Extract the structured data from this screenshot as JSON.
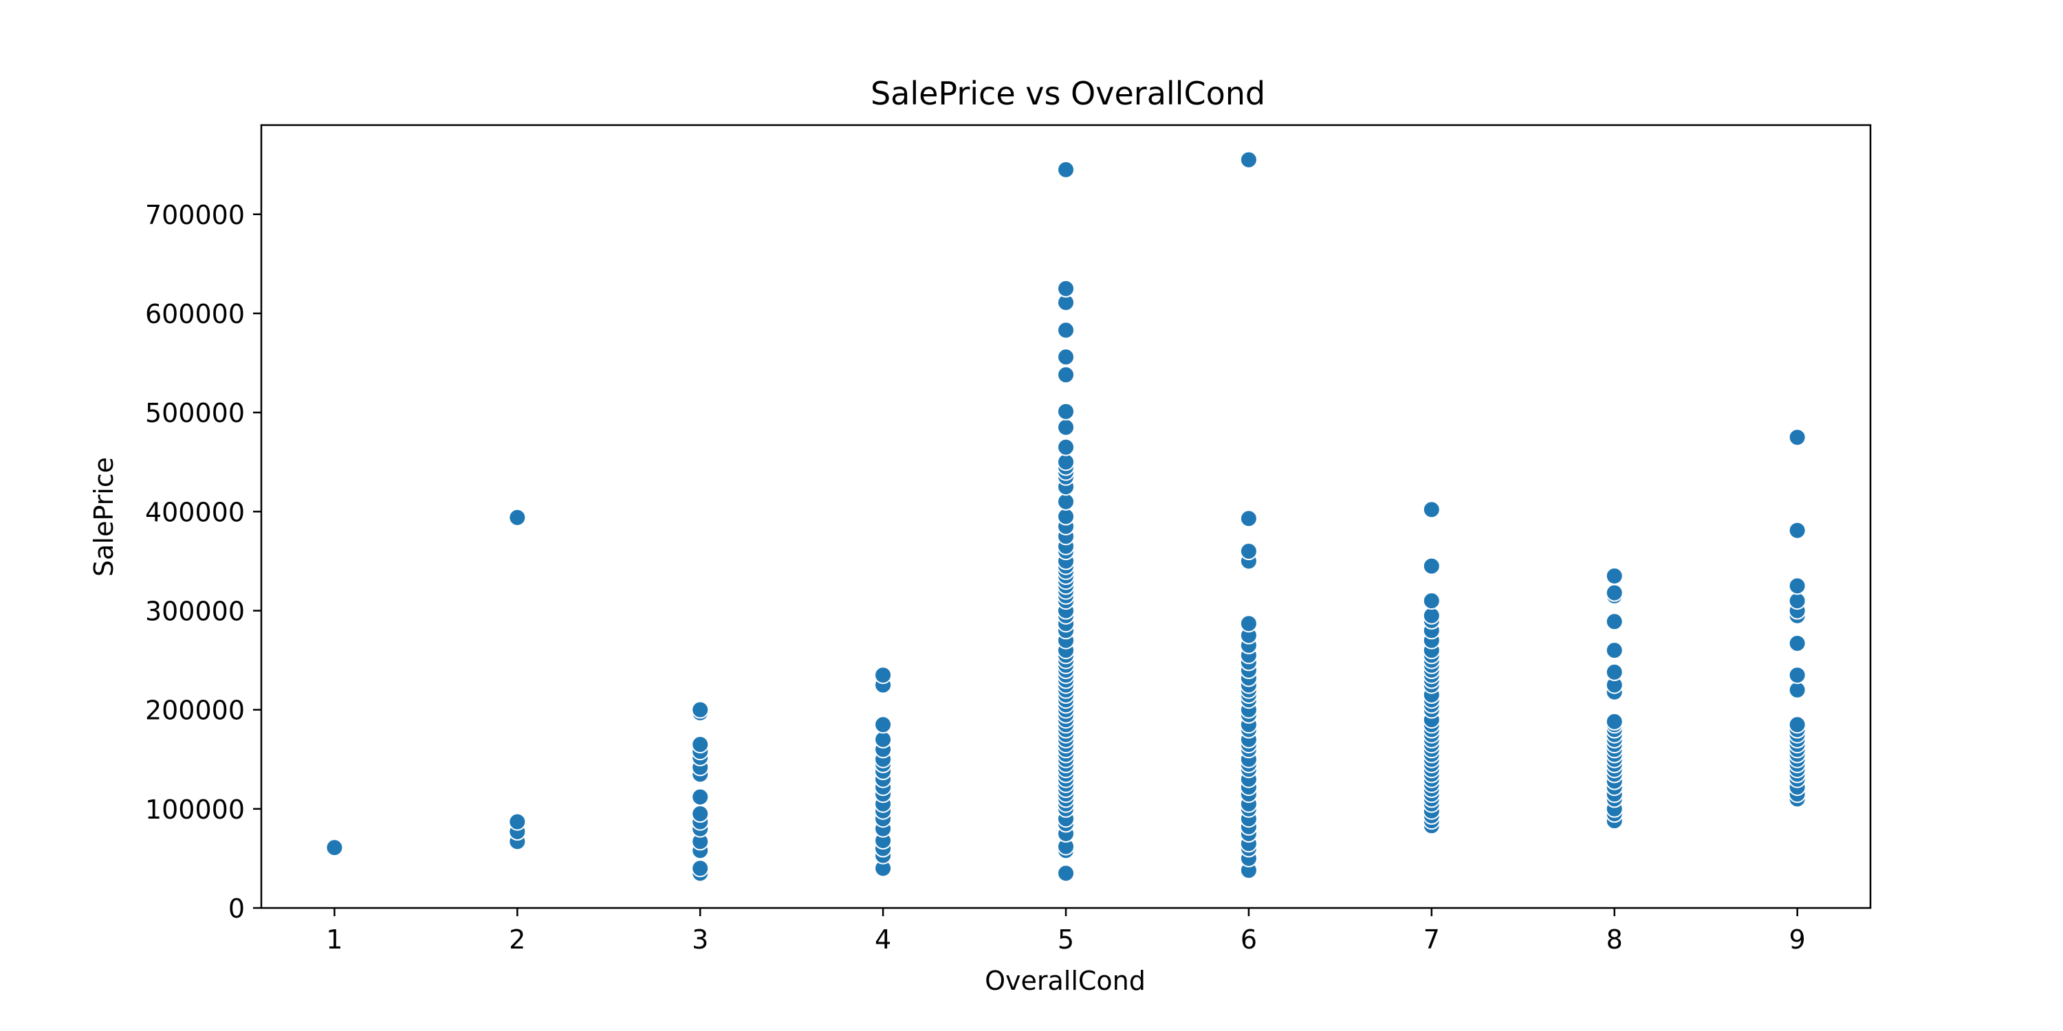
{
  "chart_data": {
    "type": "scatter",
    "title": "SalePrice vs OverallCond",
    "xlabel": "OverallCond",
    "ylabel": "SalePrice",
    "xlim": [
      0.6,
      9.4
    ],
    "ylim": [
      0,
      790000
    ],
    "x_ticks": [
      1,
      2,
      3,
      4,
      5,
      6,
      7,
      8,
      9
    ],
    "x_tick_labels": [
      "1",
      "2",
      "3",
      "4",
      "5",
      "6",
      "7",
      "8",
      "9"
    ],
    "y_ticks": [
      0,
      100000,
      200000,
      300000,
      400000,
      500000,
      600000,
      700000
    ],
    "y_tick_labels": [
      "0",
      "100000",
      "200000",
      "300000",
      "400000",
      "500000",
      "600000",
      "700000"
    ],
    "grid": false,
    "marker_color": "#1f77b4",
    "marker_edge_color": "#ffffff",
    "series": [
      {
        "points": [
          {
            "x": 1,
            "y": 61000
          },
          {
            "x": 2,
            "y": 67000
          },
          {
            "x": 2,
            "y": 77000
          },
          {
            "x": 2,
            "y": 87000
          },
          {
            "x": 2,
            "y": 394000
          },
          {
            "x": 3,
            "y": 35000
          },
          {
            "x": 3,
            "y": 40000
          },
          {
            "x": 3,
            "y": 58000
          },
          {
            "x": 3,
            "y": 67000
          },
          {
            "x": 3,
            "y": 80000
          },
          {
            "x": 3,
            "y": 87000
          },
          {
            "x": 3,
            "y": 95000
          },
          {
            "x": 3,
            "y": 112000
          },
          {
            "x": 3,
            "y": 135000
          },
          {
            "x": 3,
            "y": 142000
          },
          {
            "x": 3,
            "y": 152000
          },
          {
            "x": 3,
            "y": 158000
          },
          {
            "x": 3,
            "y": 165000
          },
          {
            "x": 3,
            "y": 197000
          },
          {
            "x": 3,
            "y": 200000
          },
          {
            "x": 4,
            "y": 40000
          },
          {
            "x": 4,
            "y": 53000
          },
          {
            "x": 4,
            "y": 60000
          },
          {
            "x": 4,
            "y": 68000
          },
          {
            "x": 4,
            "y": 80000
          },
          {
            "x": 4,
            "y": 90000
          },
          {
            "x": 4,
            "y": 98000
          },
          {
            "x": 4,
            "y": 105000
          },
          {
            "x": 4,
            "y": 115000
          },
          {
            "x": 4,
            "y": 122000
          },
          {
            "x": 4,
            "y": 130000
          },
          {
            "x": 4,
            "y": 138000
          },
          {
            "x": 4,
            "y": 145000
          },
          {
            "x": 4,
            "y": 150000
          },
          {
            "x": 4,
            "y": 160000
          },
          {
            "x": 4,
            "y": 170000
          },
          {
            "x": 4,
            "y": 185000
          },
          {
            "x": 4,
            "y": 225000
          },
          {
            "x": 4,
            "y": 235000
          },
          {
            "x": 5,
            "y": 35000
          },
          {
            "x": 5,
            "y": 58000
          },
          {
            "x": 5,
            "y": 62000
          },
          {
            "x": 5,
            "y": 75000
          },
          {
            "x": 5,
            "y": 85000
          },
          {
            "x": 5,
            "y": 90000
          },
          {
            "x": 5,
            "y": 100000
          },
          {
            "x": 5,
            "y": 105000
          },
          {
            "x": 5,
            "y": 110000
          },
          {
            "x": 5,
            "y": 115000
          },
          {
            "x": 5,
            "y": 120000
          },
          {
            "x": 5,
            "y": 125000
          },
          {
            "x": 5,
            "y": 130000
          },
          {
            "x": 5,
            "y": 135000
          },
          {
            "x": 5,
            "y": 140000
          },
          {
            "x": 5,
            "y": 145000
          },
          {
            "x": 5,
            "y": 150000
          },
          {
            "x": 5,
            "y": 155000
          },
          {
            "x": 5,
            "y": 160000
          },
          {
            "x": 5,
            "y": 165000
          },
          {
            "x": 5,
            "y": 170000
          },
          {
            "x": 5,
            "y": 175000
          },
          {
            "x": 5,
            "y": 180000
          },
          {
            "x": 5,
            "y": 185000
          },
          {
            "x": 5,
            "y": 190000
          },
          {
            "x": 5,
            "y": 195000
          },
          {
            "x": 5,
            "y": 200000
          },
          {
            "x": 5,
            "y": 205000
          },
          {
            "x": 5,
            "y": 210000
          },
          {
            "x": 5,
            "y": 215000
          },
          {
            "x": 5,
            "y": 220000
          },
          {
            "x": 5,
            "y": 225000
          },
          {
            "x": 5,
            "y": 230000
          },
          {
            "x": 5,
            "y": 235000
          },
          {
            "x": 5,
            "y": 240000
          },
          {
            "x": 5,
            "y": 245000
          },
          {
            "x": 5,
            "y": 250000
          },
          {
            "x": 5,
            "y": 255000
          },
          {
            "x": 5,
            "y": 260000
          },
          {
            "x": 5,
            "y": 270000
          },
          {
            "x": 5,
            "y": 280000
          },
          {
            "x": 5,
            "y": 287000
          },
          {
            "x": 5,
            "y": 295000
          },
          {
            "x": 5,
            "y": 300000
          },
          {
            "x": 5,
            "y": 310000
          },
          {
            "x": 5,
            "y": 315000
          },
          {
            "x": 5,
            "y": 320000
          },
          {
            "x": 5,
            "y": 325000
          },
          {
            "x": 5,
            "y": 330000
          },
          {
            "x": 5,
            "y": 335000
          },
          {
            "x": 5,
            "y": 340000
          },
          {
            "x": 5,
            "y": 345000
          },
          {
            "x": 5,
            "y": 350000
          },
          {
            "x": 5,
            "y": 360000
          },
          {
            "x": 5,
            "y": 365000
          },
          {
            "x": 5,
            "y": 375000
          },
          {
            "x": 5,
            "y": 385000
          },
          {
            "x": 5,
            "y": 395000
          },
          {
            "x": 5,
            "y": 410000
          },
          {
            "x": 5,
            "y": 425000
          },
          {
            "x": 5,
            "y": 435000
          },
          {
            "x": 5,
            "y": 440000
          },
          {
            "x": 5,
            "y": 445000
          },
          {
            "x": 5,
            "y": 450000
          },
          {
            "x": 5,
            "y": 465000
          },
          {
            "x": 5,
            "y": 485000
          },
          {
            "x": 5,
            "y": 501000
          },
          {
            "x": 5,
            "y": 538000
          },
          {
            "x": 5,
            "y": 556000
          },
          {
            "x": 5,
            "y": 583000
          },
          {
            "x": 5,
            "y": 611000
          },
          {
            "x": 5,
            "y": 625000
          },
          {
            "x": 5,
            "y": 745000
          },
          {
            "x": 6,
            "y": 38000
          },
          {
            "x": 6,
            "y": 50000
          },
          {
            "x": 6,
            "y": 60000
          },
          {
            "x": 6,
            "y": 65000
          },
          {
            "x": 6,
            "y": 75000
          },
          {
            "x": 6,
            "y": 82000
          },
          {
            "x": 6,
            "y": 90000
          },
          {
            "x": 6,
            "y": 100000
          },
          {
            "x": 6,
            "y": 105000
          },
          {
            "x": 6,
            "y": 115000
          },
          {
            "x": 6,
            "y": 122000
          },
          {
            "x": 6,
            "y": 130000
          },
          {
            "x": 6,
            "y": 140000
          },
          {
            "x": 6,
            "y": 145000
          },
          {
            "x": 6,
            "y": 150000
          },
          {
            "x": 6,
            "y": 160000
          },
          {
            "x": 6,
            "y": 165000
          },
          {
            "x": 6,
            "y": 170000
          },
          {
            "x": 6,
            "y": 180000
          },
          {
            "x": 6,
            "y": 185000
          },
          {
            "x": 6,
            "y": 195000
          },
          {
            "x": 6,
            "y": 200000
          },
          {
            "x": 6,
            "y": 210000
          },
          {
            "x": 6,
            "y": 215000
          },
          {
            "x": 6,
            "y": 220000
          },
          {
            "x": 6,
            "y": 225000
          },
          {
            "x": 6,
            "y": 232000
          },
          {
            "x": 6,
            "y": 240000
          },
          {
            "x": 6,
            "y": 248000
          },
          {
            "x": 6,
            "y": 255000
          },
          {
            "x": 6,
            "y": 265000
          },
          {
            "x": 6,
            "y": 275000
          },
          {
            "x": 6,
            "y": 287000
          },
          {
            "x": 6,
            "y": 350000
          },
          {
            "x": 6,
            "y": 360000
          },
          {
            "x": 6,
            "y": 393000
          },
          {
            "x": 6,
            "y": 755000
          },
          {
            "x": 7,
            "y": 83000
          },
          {
            "x": 7,
            "y": 88000
          },
          {
            "x": 7,
            "y": 93000
          },
          {
            "x": 7,
            "y": 98000
          },
          {
            "x": 7,
            "y": 105000
          },
          {
            "x": 7,
            "y": 110000
          },
          {
            "x": 7,
            "y": 115000
          },
          {
            "x": 7,
            "y": 120000
          },
          {
            "x": 7,
            "y": 125000
          },
          {
            "x": 7,
            "y": 130000
          },
          {
            "x": 7,
            "y": 135000
          },
          {
            "x": 7,
            "y": 140000
          },
          {
            "x": 7,
            "y": 145000
          },
          {
            "x": 7,
            "y": 150000
          },
          {
            "x": 7,
            "y": 155000
          },
          {
            "x": 7,
            "y": 160000
          },
          {
            "x": 7,
            "y": 165000
          },
          {
            "x": 7,
            "y": 170000
          },
          {
            "x": 7,
            "y": 175000
          },
          {
            "x": 7,
            "y": 180000
          },
          {
            "x": 7,
            "y": 185000
          },
          {
            "x": 7,
            "y": 190000
          },
          {
            "x": 7,
            "y": 200000
          },
          {
            "x": 7,
            "y": 205000
          },
          {
            "x": 7,
            "y": 210000
          },
          {
            "x": 7,
            "y": 215000
          },
          {
            "x": 7,
            "y": 225000
          },
          {
            "x": 7,
            "y": 230000
          },
          {
            "x": 7,
            "y": 235000
          },
          {
            "x": 7,
            "y": 240000
          },
          {
            "x": 7,
            "y": 245000
          },
          {
            "x": 7,
            "y": 250000
          },
          {
            "x": 7,
            "y": 255000
          },
          {
            "x": 7,
            "y": 260000
          },
          {
            "x": 7,
            "y": 270000
          },
          {
            "x": 7,
            "y": 280000
          },
          {
            "x": 7,
            "y": 290000
          },
          {
            "x": 7,
            "y": 295000
          },
          {
            "x": 7,
            "y": 310000
          },
          {
            "x": 7,
            "y": 345000
          },
          {
            "x": 7,
            "y": 402000
          },
          {
            "x": 8,
            "y": 88000
          },
          {
            "x": 8,
            "y": 95000
          },
          {
            "x": 8,
            "y": 100000
          },
          {
            "x": 8,
            "y": 110000
          },
          {
            "x": 8,
            "y": 115000
          },
          {
            "x": 8,
            "y": 122000
          },
          {
            "x": 8,
            "y": 128000
          },
          {
            "x": 8,
            "y": 135000
          },
          {
            "x": 8,
            "y": 140000
          },
          {
            "x": 8,
            "y": 145000
          },
          {
            "x": 8,
            "y": 150000
          },
          {
            "x": 8,
            "y": 155000
          },
          {
            "x": 8,
            "y": 160000
          },
          {
            "x": 8,
            "y": 165000
          },
          {
            "x": 8,
            "y": 170000
          },
          {
            "x": 8,
            "y": 175000
          },
          {
            "x": 8,
            "y": 180000
          },
          {
            "x": 8,
            "y": 185000
          },
          {
            "x": 8,
            "y": 188000
          },
          {
            "x": 8,
            "y": 218000
          },
          {
            "x": 8,
            "y": 225000
          },
          {
            "x": 8,
            "y": 238000
          },
          {
            "x": 8,
            "y": 260000
          },
          {
            "x": 8,
            "y": 289000
          },
          {
            "x": 8,
            "y": 315000
          },
          {
            "x": 8,
            "y": 318000
          },
          {
            "x": 8,
            "y": 335000
          },
          {
            "x": 9,
            "y": 110000
          },
          {
            "x": 9,
            "y": 115000
          },
          {
            "x": 9,
            "y": 122000
          },
          {
            "x": 9,
            "y": 130000
          },
          {
            "x": 9,
            "y": 135000
          },
          {
            "x": 9,
            "y": 140000
          },
          {
            "x": 9,
            "y": 145000
          },
          {
            "x": 9,
            "y": 150000
          },
          {
            "x": 9,
            "y": 155000
          },
          {
            "x": 9,
            "y": 160000
          },
          {
            "x": 9,
            "y": 165000
          },
          {
            "x": 9,
            "y": 170000
          },
          {
            "x": 9,
            "y": 175000
          },
          {
            "x": 9,
            "y": 180000
          },
          {
            "x": 9,
            "y": 185000
          },
          {
            "x": 9,
            "y": 220000
          },
          {
            "x": 9,
            "y": 235000
          },
          {
            "x": 9,
            "y": 267000
          },
          {
            "x": 9,
            "y": 295000
          },
          {
            "x": 9,
            "y": 300000
          },
          {
            "x": 9,
            "y": 310000
          },
          {
            "x": 9,
            "y": 325000
          },
          {
            "x": 9,
            "y": 381000
          },
          {
            "x": 9,
            "y": 475000
          }
        ]
      }
    ]
  }
}
